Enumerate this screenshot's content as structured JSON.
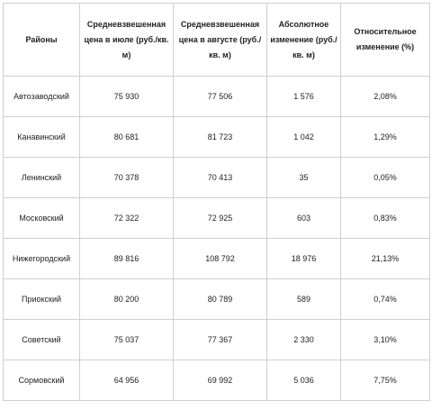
{
  "table": {
    "headers": [
      "Районы",
      "Средневзвешенная цена в июле (руб./кв. м)",
      "Средневзвешенная цена в августе (руб./кв. м)",
      "Абсолютное изменение (руб./кв. м)",
      "Относительное изменение (%)"
    ],
    "rows": [
      [
        "Автозаводский",
        "75 930",
        "77 506",
        "1 576",
        "2,08%"
      ],
      [
        "Канавинский",
        "80 681",
        "81 723",
        "1 042",
        "1,29%"
      ],
      [
        "Ленинский",
        "70 378",
        "70 413",
        "35",
        "0,05%"
      ],
      [
        "Московский",
        "72 322",
        "72 925",
        "603",
        "0,83%"
      ],
      [
        "Нижегородский",
        "89 816",
        "108 792",
        "18 976",
        "21,13%"
      ],
      [
        "Приокский",
        "80 200",
        "80 789",
        "589",
        "0,74%"
      ],
      [
        "Советский",
        "75 037",
        "77 367",
        "2 330",
        "3,10%"
      ],
      [
        "Сормовский",
        "64 956",
        "69 992",
        "5 036",
        "7,75%"
      ]
    ]
  },
  "colors": {
    "border": "#cfcfcf",
    "text": "#222222",
    "background": "#ffffff"
  }
}
